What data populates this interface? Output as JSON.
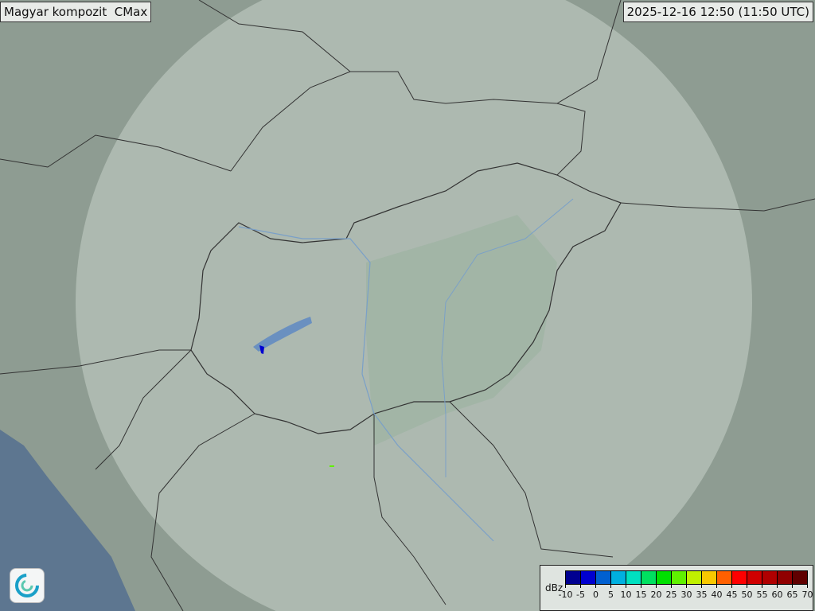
{
  "title": "Magyar kompozit  CMax",
  "timestamp": "2025-12-16 12:50 (11:50 UTC)",
  "logo": {
    "icon": "swirl-logo-icon"
  },
  "legend": {
    "unit": "dBz",
    "ticks": [
      "-10",
      "-5",
      "0",
      "5",
      "10",
      "15",
      "20",
      "25",
      "30",
      "35",
      "40",
      "45",
      "50",
      "55",
      "60",
      "65",
      "70"
    ],
    "colors": [
      "#000090",
      "#0000d0",
      "#0060d0",
      "#00b0e0",
      "#00e0c0",
      "#00e060",
      "#00e000",
      "#60f000",
      "#c0f000",
      "#f8c800",
      "#ff6000",
      "#ff0000",
      "#d00000",
      "#b00000",
      "#900000",
      "#600000"
    ]
  },
  "colors": {
    "land": "#8e9c92",
    "coverage": "#b4c2b8",
    "plain": "#a3b8a8",
    "sea": "#5d7690",
    "border": "#333333"
  }
}
